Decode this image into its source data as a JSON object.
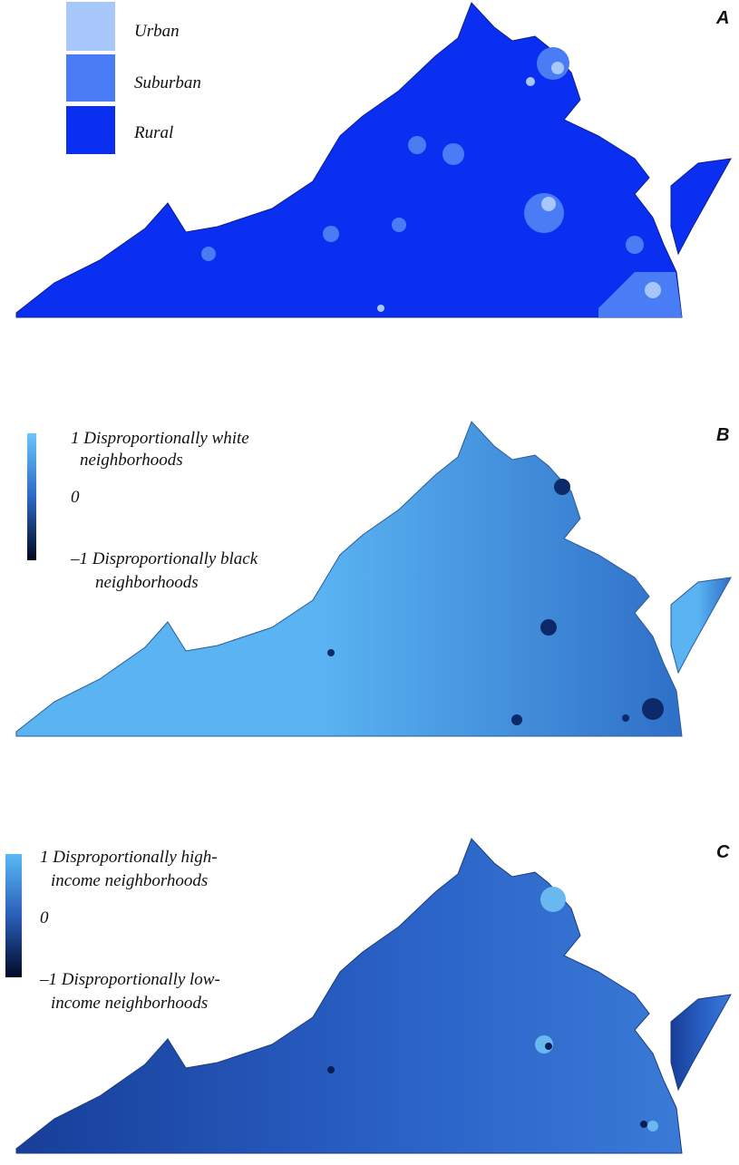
{
  "panels": [
    {
      "label": "A",
      "legend": [
        "Urban",
        "Suburban",
        "Rural"
      ]
    },
    {
      "label": "B",
      "legend": [
        "1 Disproportionally white",
        "neighborhoods",
        "0",
        "–1 Disproportionally black",
        "neighborhoods"
      ]
    },
    {
      "label": "C",
      "legend": [
        "1 Disproportionally high-",
        "income neighborhoods",
        "0",
        "–1 Disproportionally low-",
        "income neighborhoods"
      ]
    }
  ]
}
